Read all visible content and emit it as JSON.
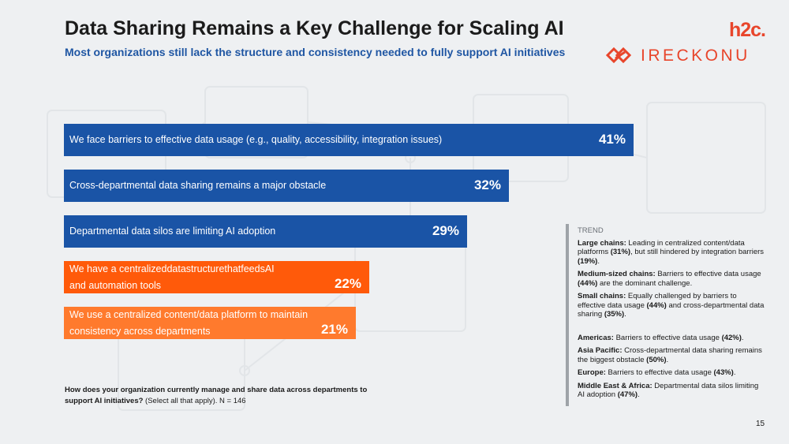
{
  "header": {
    "title": "Data Sharing Remains a Key Challenge for Scaling AI",
    "subtitle": "Most organizations still lack the structure and consistency needed to fully support AI initiatives"
  },
  "logos": {
    "h2c": "h2c.",
    "ireckonu": "IRECKONU"
  },
  "colors": {
    "blue": "#1a54a6",
    "orange_dark": "#ff5a0a",
    "orange_light": "#ff7a2d",
    "accent": "#e8452b"
  },
  "chart_data": {
    "type": "bar",
    "orientation": "horizontal",
    "categories": [
      "We face barriers to effective data usage (e.g., quality, accessibility, integration issues)",
      "Cross-departmental data sharing remains a major obstacle",
      "Departmental data silos are limiting AI adoption",
      "We have a centralizeddatastructurethatfeedsAI and automation tools",
      "We use a centralized content/data platform to maintain consistency across departments"
    ],
    "values": [
      41,
      32,
      29,
      22,
      21
    ],
    "value_labels": [
      "41%",
      "32%",
      "29%",
      "22%",
      "21%"
    ],
    "bar_colors": [
      "#1a54a6",
      "#1a54a6",
      "#1a54a6",
      "#ff5a0a",
      "#ff7a2d"
    ],
    "label_lines": [
      [
        "We face barriers to effective data usage (e.g., quality, accessibility, integration issues)"
      ],
      [
        "Cross-departmental data sharing remains a major obstacle"
      ],
      [
        "Departmental data silos are limiting AI adoption"
      ],
      [
        "We have a centralizeddatastructurethatfeedsAI",
        "and automation tools"
      ],
      [
        "We use a centralized content/data platform to maintain",
        "consistency across departments"
      ]
    ],
    "xlim": [
      0,
      41
    ]
  },
  "question": {
    "text": "How does your organization currently manage and share data across departments to support AI initiatives?",
    "note": " (Select all that apply). N = 146"
  },
  "trend": {
    "heading": "TREND",
    "segment_items": [
      {
        "label": "Large chains:",
        "parts": [
          " Leading in centralized content/data platforms ",
          "(31%)",
          ", but still hindered by integration barriers ",
          "(19%)",
          "."
        ]
      },
      {
        "label": "Medium-sized chains:",
        "parts": [
          " Barriers to effective data usage ",
          "(44%)",
          " are the dominant challenge."
        ]
      },
      {
        "label": "Small chains:",
        "parts": [
          " Equally challenged by barriers to effective data usage ",
          "(44%)",
          " and cross-departmental data sharing ",
          "(35%)",
          "."
        ]
      }
    ],
    "region_items": [
      {
        "label": "Americas:",
        "parts": [
          " Barriers to effective data usage ",
          "(42%)",
          "."
        ]
      },
      {
        "label": "Asia Pacific:",
        "parts": [
          " Cross-departmental data sharing remains the biggest obstacle ",
          "(50%)",
          "."
        ]
      },
      {
        "label": "Europe:",
        "parts": [
          " Barriers to effective data usage ",
          "(43%)",
          "."
        ]
      },
      {
        "label": "Middle East & Africa:",
        "parts": [
          " Departmental data silos limiting AI adoption ",
          "(47%)",
          "."
        ]
      }
    ]
  },
  "page_number": "15"
}
